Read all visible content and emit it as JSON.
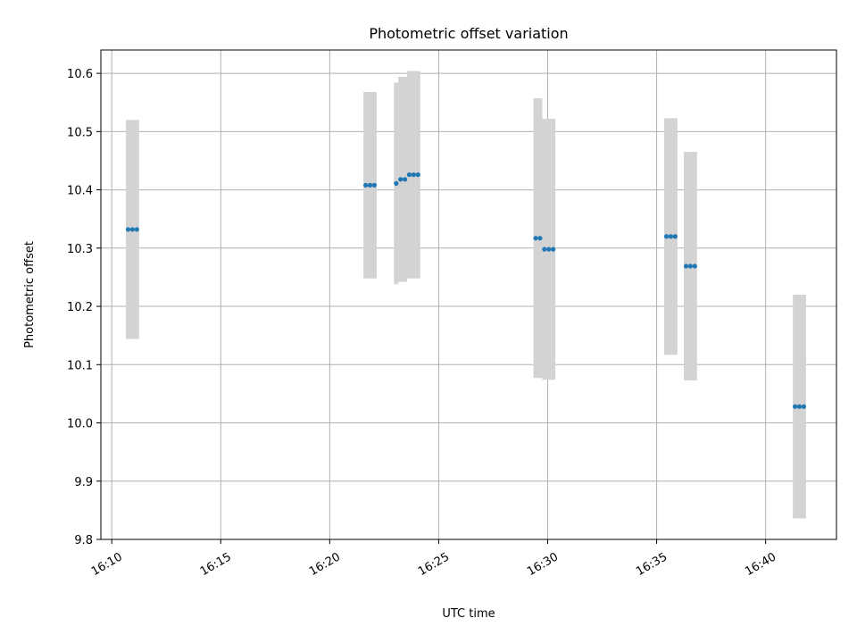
{
  "chart_data": {
    "type": "scatter",
    "title": "Photometric offset variation",
    "xlabel": "UTC time",
    "ylabel": "Photometric offset",
    "ylim": [
      9.8,
      10.64
    ],
    "xlim": [
      "16:09:30",
      "16:43:15"
    ],
    "grid": true,
    "x_ticks": [
      "16:10",
      "16:15",
      "16:20",
      "16:25",
      "16:30",
      "16:35",
      "16:40"
    ],
    "y_ticks": [
      "9.8",
      "9.9",
      "10.0",
      "10.1",
      "10.2",
      "10.3",
      "10.4",
      "10.5",
      "10.6"
    ],
    "point_color": "#1f77b4",
    "errorbar_color": "#d3d3d3",
    "series": [
      {
        "points": [
          {
            "x": "16:10:45",
            "y": 10.332,
            "err": 0.188
          },
          {
            "x": "16:10:57",
            "y": 10.332,
            "err": 0.188
          },
          {
            "x": "16:11:09",
            "y": 10.332,
            "err": 0.188
          },
          {
            "x": "16:21:39",
            "y": 10.408,
            "err": 0.16
          },
          {
            "x": "16:21:51",
            "y": 10.408,
            "err": 0.16
          },
          {
            "x": "16:22:03",
            "y": 10.408,
            "err": 0.16
          },
          {
            "x": "16:23:03",
            "y": 10.411,
            "err": 0.173
          },
          {
            "x": "16:23:15",
            "y": 10.418,
            "err": 0.176
          },
          {
            "x": "16:23:27",
            "y": 10.418,
            "err": 0.176
          },
          {
            "x": "16:23:39",
            "y": 10.426,
            "err": 0.178
          },
          {
            "x": "16:23:51",
            "y": 10.426,
            "err": 0.178
          },
          {
            "x": "16:24:03",
            "y": 10.426,
            "err": 0.178
          },
          {
            "x": "16:29:27",
            "y": 10.317,
            "err": 0.24
          },
          {
            "x": "16:29:39",
            "y": 10.317,
            "err": 0.24
          },
          {
            "x": "16:29:51",
            "y": 10.298,
            "err": 0.224
          },
          {
            "x": "16:30:03",
            "y": 10.298,
            "err": 0.224
          },
          {
            "x": "16:30:15",
            "y": 10.298,
            "err": 0.224
          },
          {
            "x": "16:35:27",
            "y": 10.32,
            "err": 0.203
          },
          {
            "x": "16:35:39",
            "y": 10.32,
            "err": 0.203
          },
          {
            "x": "16:35:51",
            "y": 10.32,
            "err": 0.203
          },
          {
            "x": "16:36:21",
            "y": 10.269,
            "err": 0.196
          },
          {
            "x": "16:36:33",
            "y": 10.269,
            "err": 0.196
          },
          {
            "x": "16:36:45",
            "y": 10.269,
            "err": 0.196
          },
          {
            "x": "16:41:21",
            "y": 10.028,
            "err": 0.192
          },
          {
            "x": "16:41:33",
            "y": 10.028,
            "err": 0.192
          },
          {
            "x": "16:41:45",
            "y": 10.028,
            "err": 0.192
          }
        ]
      }
    ]
  }
}
